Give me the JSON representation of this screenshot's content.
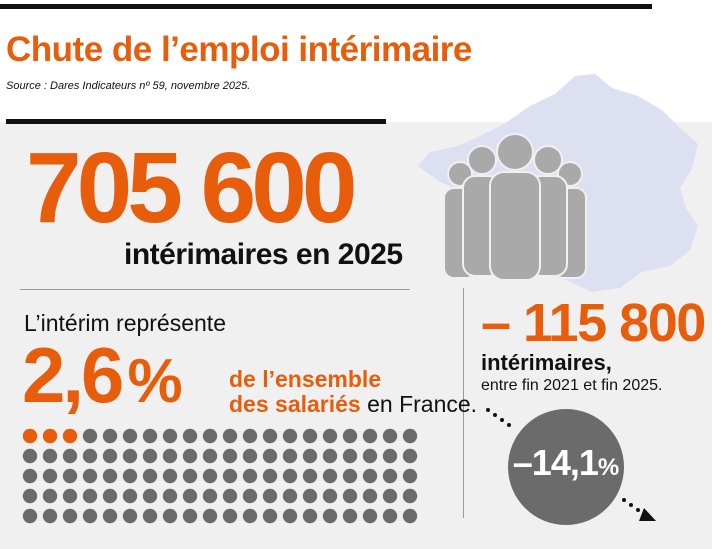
{
  "header": {
    "title": "Chute de l’emploi intérimaire",
    "source": "Source : Dares Indicateurs nº 59, novembre 2025."
  },
  "total": {
    "value": "705 600",
    "label": "intérimaires en 2025"
  },
  "share": {
    "lead": "L’intérim représente",
    "value": "2,6",
    "unit": "%",
    "line1": "de l’ensemble",
    "line2_highlight": "des salariés",
    "line2_rest": " en France.",
    "dot_grid": {
      "total_dots": 100,
      "highlighted_dots": 3
    }
  },
  "change": {
    "value": "– 115 800",
    "label": "intérimaires,",
    "period": "entre fin 2021 et fin 2025.",
    "percent_value": "–14,1",
    "percent_unit": "%"
  },
  "colors": {
    "accent": "#e85d0c",
    "dark": "#111111",
    "panel": "#f0f0f0",
    "dot_gray": "#6b6b6b",
    "map": "#dde0f0",
    "people": "#a9a9a9",
    "circle": "#6b6b6b"
  },
  "icons": [
    "france-map-icon",
    "people-group-icon",
    "downward-arrow-icon"
  ]
}
